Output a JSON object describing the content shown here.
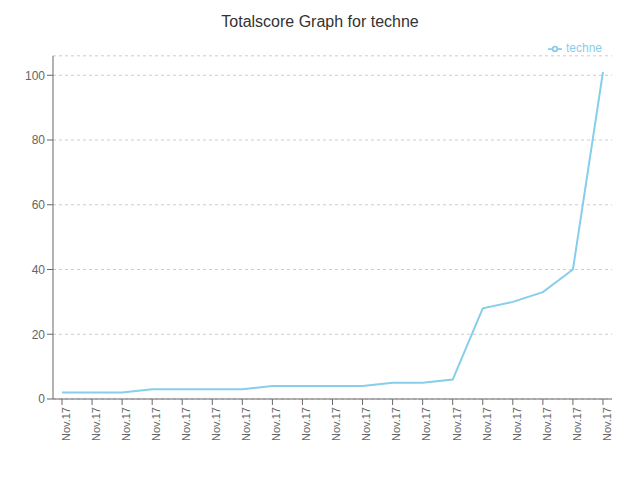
{
  "chart_data": {
    "type": "line",
    "title": "Totalscore Graph for techne",
    "x": [
      0,
      1,
      2,
      3,
      4,
      5,
      6,
      7,
      8,
      9,
      10,
      11,
      12,
      13,
      14,
      15,
      16,
      17,
      18
    ],
    "series": [
      {
        "name": "techne",
        "color": "#87CEEB",
        "values": [
          2,
          2,
          2,
          3,
          3,
          3,
          3,
          4,
          4,
          4,
          4,
          5,
          5,
          6,
          28,
          30,
          33,
          40,
          101
        ]
      }
    ],
    "xlim": [
      -0.3,
      18.3
    ],
    "xticks": [
      {
        "value": 0,
        "label": "Nov.17"
      },
      {
        "value": 1,
        "label": "Nov.17"
      },
      {
        "value": 2,
        "label": "Nov.17"
      },
      {
        "value": 3,
        "label": "Nov.17"
      },
      {
        "value": 4,
        "label": "Nov.17"
      },
      {
        "value": 5,
        "label": "Nov.17"
      },
      {
        "value": 6,
        "label": "Nov.17"
      },
      {
        "value": 7,
        "label": "Nov.17"
      },
      {
        "value": 8,
        "label": "Nov.17"
      },
      {
        "value": 9,
        "label": "Nov.17"
      },
      {
        "value": 10,
        "label": "Nov.17"
      },
      {
        "value": 11,
        "label": "Nov.17"
      },
      {
        "value": 12,
        "label": "Nov.17"
      },
      {
        "value": 13,
        "label": "Nov.17"
      },
      {
        "value": 14,
        "label": "Nov.17"
      },
      {
        "value": 15,
        "label": "Nov.17"
      },
      {
        "value": 16,
        "label": "Nov.17"
      },
      {
        "value": 17,
        "label": "Nov.17"
      },
      {
        "value": 18,
        "label": "Nov.17"
      }
    ],
    "ylim": [
      0,
      106
    ],
    "yticks": [
      0,
      20,
      40,
      60,
      80,
      100
    ],
    "grid": true,
    "legend": "upper right"
  }
}
